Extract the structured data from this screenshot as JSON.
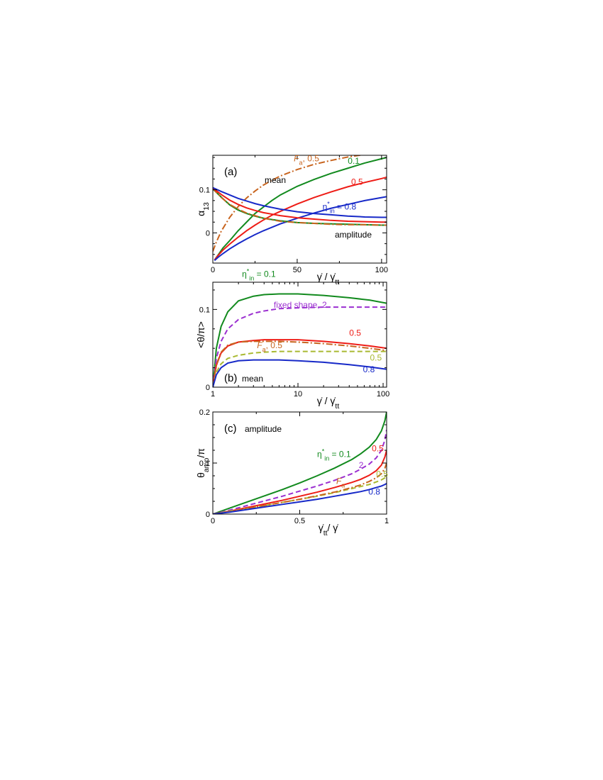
{
  "colors": {
    "green": "#128a1e",
    "red": "#ee1c16",
    "blue": "#1729c8",
    "orange": "#c8641e",
    "purple": "#9b2fd0",
    "olive": "#a9b931",
    "black": "#000000"
  },
  "chart_data": [
    {
      "type": "line",
      "panel_label": "(a)",
      "ylabel": "α13",
      "xlabel": "γ̇ / γ̇tt",
      "xlim": [
        0,
        103
      ],
      "ylim": [
        -0.07,
        0.18
      ],
      "x_scale": "linear",
      "xticks": [
        0,
        50,
        100
      ],
      "yticks": [
        0,
        0.1
      ],
      "grid": false,
      "tag_top": "mean",
      "tag_bottom": "amplitude",
      "series": [
        {
          "color": "green",
          "dash": "solid",
          "x": [
            1,
            3,
            6,
            10,
            15,
            20,
            25,
            30,
            35,
            40,
            50,
            60,
            70,
            80,
            90,
            100,
            103
          ],
          "y": [
            -0.063,
            -0.052,
            -0.035,
            -0.018,
            0.005,
            0.025,
            0.045,
            0.06,
            0.075,
            0.088,
            0.108,
            0.124,
            0.138,
            0.15,
            0.162,
            0.172,
            0.175
          ]
        },
        {
          "color": "red",
          "dash": "solid",
          "x": [
            1,
            3,
            6,
            10,
            15,
            20,
            25,
            30,
            35,
            40,
            50,
            60,
            70,
            80,
            90,
            100,
            103
          ],
          "y": [
            -0.063,
            -0.053,
            -0.04,
            -0.026,
            -0.01,
            0.005,
            0.018,
            0.03,
            0.041,
            0.05,
            0.067,
            0.082,
            0.095,
            0.107,
            0.117,
            0.126,
            0.129
          ]
        },
        {
          "color": "blue",
          "dash": "solid",
          "x": [
            1,
            3,
            6,
            10,
            15,
            20,
            25,
            30,
            35,
            40,
            50,
            60,
            70,
            80,
            90,
            100,
            103
          ],
          "y": [
            -0.064,
            -0.057,
            -0.048,
            -0.037,
            -0.025,
            -0.014,
            -0.004,
            0.005,
            0.013,
            0.021,
            0.034,
            0.046,
            0.057,
            0.066,
            0.075,
            0.082,
            0.084
          ]
        },
        {
          "color": "orange",
          "dash": "dashdot",
          "x": [
            0,
            2,
            5,
            10,
            15,
            20,
            25,
            30,
            35,
            40,
            50,
            60,
            70,
            80,
            90,
            100,
            103
          ],
          "y": [
            -0.043,
            -0.022,
            0.004,
            0.036,
            0.061,
            0.081,
            0.097,
            0.111,
            0.122,
            0.132,
            0.147,
            0.159,
            0.168,
            0.176,
            0.182,
            0.188,
            0.19
          ]
        },
        {
          "color": "green",
          "dash": "solid",
          "x": [
            0,
            5,
            10,
            15,
            20,
            25,
            30,
            40,
            50,
            60,
            70,
            80,
            90,
            100,
            103
          ],
          "y": [
            0.102,
            0.083,
            0.065,
            0.053,
            0.045,
            0.039,
            0.034,
            0.028,
            0.024,
            0.022,
            0.021,
            0.02,
            0.019,
            0.018,
            0.018
          ]
        },
        {
          "color": "orange",
          "dash": "dashdot",
          "x": [
            0,
            5,
            10,
            15,
            20,
            25,
            30,
            40,
            50,
            60,
            70,
            80,
            90,
            100,
            103
          ],
          "y": [
            0.103,
            0.082,
            0.066,
            0.055,
            0.046,
            0.04,
            0.034,
            0.027,
            0.024,
            0.022,
            0.02,
            0.019,
            0.019,
            0.018,
            0.018
          ]
        },
        {
          "color": "red",
          "dash": "solid",
          "x": [
            0,
            5,
            10,
            15,
            20,
            25,
            30,
            40,
            50,
            60,
            70,
            80,
            90,
            100,
            103
          ],
          "y": [
            0.104,
            0.089,
            0.076,
            0.066,
            0.058,
            0.052,
            0.047,
            0.04,
            0.035,
            0.032,
            0.029,
            0.027,
            0.026,
            0.025,
            0.025
          ]
        },
        {
          "color": "blue",
          "dash": "solid",
          "x": [
            0,
            5,
            10,
            15,
            20,
            25,
            30,
            40,
            50,
            60,
            70,
            80,
            90,
            100,
            103
          ],
          "y": [
            0.105,
            0.096,
            0.088,
            0.08,
            0.074,
            0.068,
            0.063,
            0.055,
            0.049,
            0.045,
            0.042,
            0.039,
            0.037,
            0.036,
            0.036
          ]
        }
      ],
      "annotations": [
        {
          "text": "0.1",
          "color": "green",
          "x": 80,
          "y": 0.16
        },
        {
          "text": "0.5",
          "color": "red",
          "x": 82,
          "y": 0.112
        },
        {
          "text": "η*in = 0.8",
          "color": "blue",
          "x": 65,
          "y": 0.054
        },
        {
          "text": "Fa, 0.5",
          "color": "orange",
          "x": 48,
          "y": 0.166
        }
      ]
    },
    {
      "type": "line",
      "panel_label": "(b)",
      "ylabel": "<θ/π>",
      "xlabel": "γ̇ / γ̇tt",
      "xlim": [
        1,
        110
      ],
      "ylim": [
        0,
        0.135
      ],
      "x_scale": "log",
      "xticks": [
        1,
        10,
        100
      ],
      "yticks": [
        0,
        0.1
      ],
      "grid": false,
      "tag_bottom": "mean",
      "series": [
        {
          "color": "green",
          "dash": "solid",
          "x": [
            1,
            1.1,
            1.25,
            1.5,
            2,
            3,
            4,
            6,
            10,
            20,
            40,
            70,
            110
          ],
          "y": [
            0,
            0.05,
            0.078,
            0.097,
            0.111,
            0.117,
            0.119,
            0.12,
            0.12,
            0.118,
            0.115,
            0.112,
            0.108
          ]
        },
        {
          "color": "purple",
          "dash": "dashed",
          "x": [
            1,
            1.1,
            1.25,
            1.5,
            2,
            3,
            4,
            6,
            10,
            20,
            40,
            70,
            110
          ],
          "y": [
            0,
            0.037,
            0.059,
            0.075,
            0.087,
            0.095,
            0.098,
            0.101,
            0.102,
            0.103,
            0.103,
            0.103,
            0.103
          ]
        },
        {
          "color": "red",
          "dash": "solid",
          "x": [
            1,
            1.1,
            1.25,
            1.5,
            2,
            3,
            4,
            6,
            10,
            20,
            40,
            70,
            110
          ],
          "y": [
            0,
            0.028,
            0.044,
            0.053,
            0.058,
            0.06,
            0.061,
            0.061,
            0.061,
            0.059,
            0.056,
            0.053,
            0.05
          ]
        },
        {
          "color": "orange",
          "dash": "dashdot",
          "x": [
            1,
            1.1,
            1.25,
            1.5,
            2,
            3,
            4,
            6,
            10,
            20,
            40,
            70,
            110
          ],
          "y": [
            0,
            0.029,
            0.045,
            0.054,
            0.058,
            0.059,
            0.059,
            0.059,
            0.058,
            0.056,
            0.053,
            0.05,
            0.047
          ]
        },
        {
          "color": "olive",
          "dash": "dashed",
          "x": [
            1,
            1.1,
            1.25,
            1.5,
            2,
            3,
            4,
            6,
            10,
            20,
            40,
            70,
            110
          ],
          "y": [
            0,
            0.019,
            0.03,
            0.037,
            0.041,
            0.044,
            0.045,
            0.046,
            0.046,
            0.046,
            0.046,
            0.046,
            0.046
          ]
        },
        {
          "color": "blue",
          "dash": "solid",
          "x": [
            1,
            1.1,
            1.25,
            1.5,
            2,
            3,
            4,
            6,
            10,
            20,
            40,
            70,
            110
          ],
          "y": [
            0,
            0.016,
            0.025,
            0.031,
            0.034,
            0.035,
            0.035,
            0.035,
            0.034,
            0.032,
            0.029,
            0.026,
            0.023
          ]
        }
      ],
      "annotations": [
        {
          "text": "η*in = 0.1",
          "color": "green",
          "x": 2.2,
          "y": 0.142
        },
        {
          "text": "fixed shape, 2",
          "color": "purple",
          "x": 5.2,
          "y": 0.102
        },
        {
          "text": "0.5",
          "color": "red",
          "x": 40,
          "y": 0.066
        },
        {
          "text": "Fa, 0.5",
          "color": "orange",
          "x": 3.3,
          "y": 0.05
        },
        {
          "text": "0.5",
          "color": "olive",
          "x": 70,
          "y": 0.034
        },
        {
          "text": "0.8",
          "color": "blue",
          "x": 58,
          "y": 0.019
        }
      ]
    },
    {
      "type": "line",
      "panel_label": "(c)",
      "ylabel": "θamp/π",
      "xlabel": "γ̇tt/ γ̇",
      "xlim": [
        0,
        1
      ],
      "ylim": [
        0,
        0.2
      ],
      "x_scale": "linear",
      "xticks": [
        0,
        0.5,
        1
      ],
      "yticks": [
        0,
        0.1,
        0.2
      ],
      "grid": false,
      "tag_top": "amplitude",
      "series": [
        {
          "color": "green",
          "dash": "solid",
          "x": [
            0,
            0.1,
            0.2,
            0.3,
            0.4,
            0.5,
            0.6,
            0.7,
            0.8,
            0.85,
            0.9,
            0.94,
            0.97,
            0.99,
            1.0
          ],
          "y": [
            0,
            0.012,
            0.024,
            0.036,
            0.048,
            0.061,
            0.075,
            0.09,
            0.107,
            0.118,
            0.131,
            0.146,
            0.163,
            0.183,
            0.2
          ]
        },
        {
          "color": "purple",
          "dash": "dashed",
          "x": [
            0,
            0.1,
            0.2,
            0.3,
            0.4,
            0.5,
            0.6,
            0.7,
            0.8,
            0.85,
            0.9,
            0.94,
            0.97,
            0.99,
            1.0
          ],
          "y": [
            0,
            0.008,
            0.017,
            0.026,
            0.035,
            0.045,
            0.055,
            0.066,
            0.079,
            0.088,
            0.098,
            0.11,
            0.125,
            0.145,
            0.165
          ]
        },
        {
          "color": "red",
          "dash": "solid",
          "x": [
            0,
            0.1,
            0.2,
            0.3,
            0.4,
            0.5,
            0.6,
            0.7,
            0.8,
            0.85,
            0.9,
            0.94,
            0.97,
            0.99,
            1.0
          ],
          "y": [
            0,
            0.006,
            0.013,
            0.02,
            0.027,
            0.035,
            0.043,
            0.052,
            0.062,
            0.068,
            0.076,
            0.085,
            0.096,
            0.112,
            0.125
          ]
        },
        {
          "color": "olive",
          "dash": "dashed",
          "x": [
            0,
            0.1,
            0.2,
            0.3,
            0.4,
            0.5,
            0.6,
            0.7,
            0.8,
            0.85,
            0.9,
            0.94,
            0.97,
            0.99,
            1.0
          ],
          "y": [
            0,
            0.006,
            0.011,
            0.017,
            0.023,
            0.029,
            0.035,
            0.042,
            0.05,
            0.054,
            0.058,
            0.063,
            0.067,
            0.071,
            0.074
          ]
        },
        {
          "color": "orange",
          "dash": "dashdot",
          "x": [
            0,
            0.1,
            0.2,
            0.3,
            0.4,
            0.5,
            0.6,
            0.7,
            0.8,
            0.85,
            0.9,
            0.94,
            0.97,
            0.99,
            1.0
          ],
          "y": [
            0,
            0.005,
            0.011,
            0.017,
            0.023,
            0.029,
            0.036,
            0.043,
            0.052,
            0.057,
            0.064,
            0.071,
            0.079,
            0.09,
            0.1
          ]
        },
        {
          "color": "blue",
          "dash": "solid",
          "x": [
            0,
            0.1,
            0.2,
            0.3,
            0.4,
            0.5,
            0.6,
            0.7,
            0.8,
            0.85,
            0.9,
            0.94,
            0.97,
            0.99,
            1.0
          ],
          "y": [
            0,
            0.004,
            0.009,
            0.014,
            0.019,
            0.024,
            0.029,
            0.035,
            0.041,
            0.044,
            0.048,
            0.052,
            0.055,
            0.058,
            0.06
          ]
        }
      ],
      "annotations": [
        {
          "text": "η*in = 0.1",
          "color": "green",
          "x": 0.6,
          "y": 0.112
        },
        {
          "text": "2",
          "color": "purple",
          "x": 0.84,
          "y": 0.09
        },
        {
          "text": "0.5",
          "color": "red",
          "x": 0.915,
          "y": 0.123
        },
        {
          "text": "0.5",
          "color": "olive",
          "x": 0.94,
          "y": 0.073
        },
        {
          "text": "Fa",
          "color": "orange",
          "x": 0.71,
          "y": 0.059
        },
        {
          "text": "0.8",
          "color": "blue",
          "x": 0.895,
          "y": 0.038
        }
      ]
    }
  ]
}
